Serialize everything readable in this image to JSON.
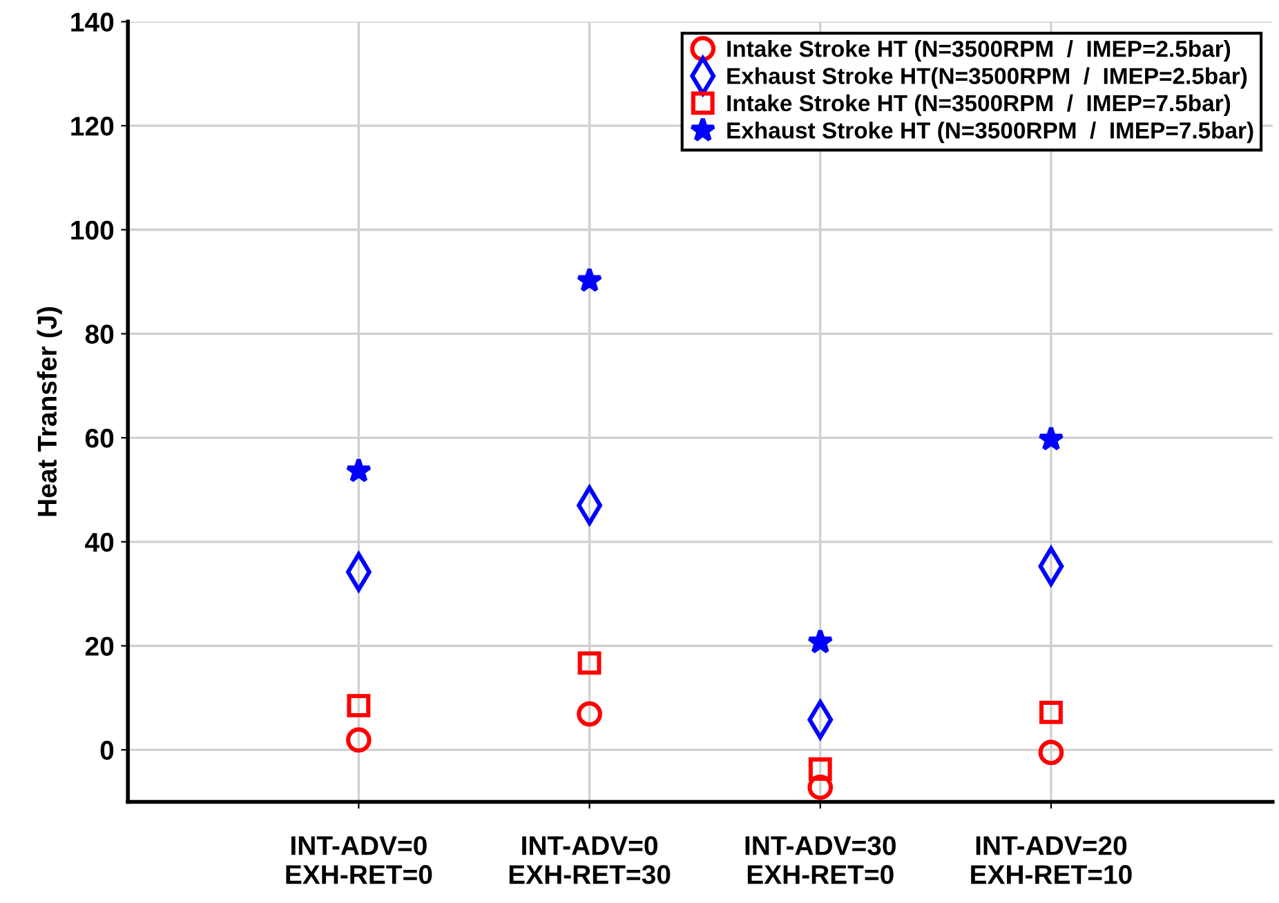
{
  "chart_data": {
    "type": "scatter",
    "ylabel": "Heat Transfer (J)",
    "categories": [
      "INT-ADV=0\nEXH-RET=0",
      "INT-ADV=0\nEXH-RET=30",
      "INT-ADV=30\nEXH-RET=0",
      "INT-ADV=20\nEXH-RET=10"
    ],
    "series": [
      {
        "name": "Intake Stroke HT (N=3500RPM  /  IMEP=2.5bar)",
        "color": "#ff0000",
        "marker": "circle",
        "values": [
          1.9,
          6.9,
          -7.2,
          -0.5
        ]
      },
      {
        "name": "Exhaust Stroke HT(N=3500RPM  /  IMEP=2.5bar)",
        "color": "#0000ff",
        "marker": "diamond",
        "values": [
          34.2,
          47,
          5.8,
          35.3
        ]
      },
      {
        "name": "Intake Stroke HT (N=3500RPM  /  IMEP=7.5bar)",
        "color": "#ff0000",
        "marker": "square",
        "values": [
          8.5,
          16.7,
          -3.7,
          7.2
        ]
      },
      {
        "name": "Exhaust Stroke HT (N=3500RPM  /  IMEP=7.5bar)",
        "color": "#0000ff",
        "marker": "star",
        "values": [
          53.6,
          90.2,
          20.7,
          59.7
        ]
      }
    ],
    "ylim": [
      -10,
      140
    ],
    "yticks": [
      0,
      20,
      40,
      60,
      80,
      100,
      120,
      140
    ],
    "grid": true,
    "legend": "top right"
  }
}
